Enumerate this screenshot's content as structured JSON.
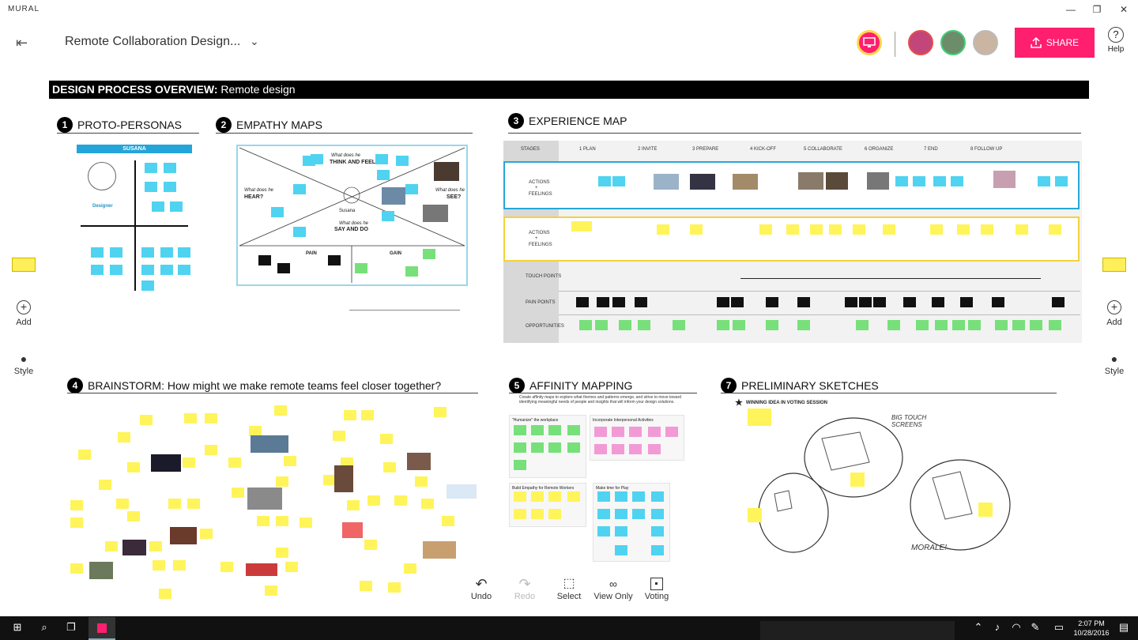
{
  "window": {
    "app_name": "MURAL",
    "minimize": "—",
    "maximize": "❐",
    "close": "✕"
  },
  "header": {
    "board_title": "Remote Collaboration Design...",
    "share_label": "SHARE",
    "help_label": "Help"
  },
  "side_tools": {
    "add_label": "Add",
    "style_label": "Style"
  },
  "canvas": {
    "title_bold": "DESIGN PROCESS OVERVIEW:",
    "title_rest": " Remote design",
    "sections": {
      "s1": {
        "num": "1",
        "title": "PROTO-PERSONAS",
        "persona_name": "SUSANA",
        "persona_role": "Designer"
      },
      "s2": {
        "num": "2",
        "title": "EMPATHY MAPS",
        "think": "THINK AND FEEL",
        "think_pre": "What does he",
        "hear": "HEAR?",
        "hear_pre": "What does he",
        "see": "SEE?",
        "see_pre": "What does he",
        "say": "SAY AND DO",
        "say_pre": "What does he",
        "center": "Susana",
        "pain": "PAIN",
        "gain": "GAIN"
      },
      "s3": {
        "num": "3",
        "title": "EXPERIENCE MAP",
        "stages_label": "STAGES",
        "stages": [
          "1  PLAN",
          "2  INVITE",
          "3  PREPARE",
          "4  KICK-OFF",
          "5  COLLABORATE",
          "6  ORGANIZE",
          "7  END",
          "8  FOLLOW UP"
        ],
        "rows": {
          "actions": "ACTIONS",
          "plus": "+",
          "feelings": "FEELINGS",
          "touchpoints": "TOUCH POINTS",
          "painpoints": "PAIN POINTS",
          "opportunities": "OPPORTUNITIES"
        }
      },
      "s4": {
        "num": "4",
        "title": "BRAINSTORM: How might we make remote teams feel closer together?"
      },
      "s5": {
        "num": "5",
        "title": "AFFINITY MAPPING",
        "desc": "Create affinity maps to explore what themes and patterns emerge, and strive to move toward identifying meaningful needs of people and insights that will inform your design solutions.",
        "groups": [
          "\"Humanize\" the workplace",
          "Incorporate Interpersonal Activities",
          "Build Empathy for Remote Workers",
          "Make time for Play"
        ]
      },
      "s7": {
        "num": "7",
        "title": "PRELIMINARY SKETCHES",
        "winning": "WINNING IDEA IN VOTING SESSION",
        "big_touch": "BIG TOUCH\nSCREENS",
        "morale": "MORALE!"
      }
    }
  },
  "bottom_toolbar": {
    "undo": "Undo",
    "redo": "Redo",
    "select": "Select",
    "view_only": "View Only",
    "voting": "Voting"
  },
  "taskbar": {
    "time": "2:07 PM",
    "date": "10/28/2016"
  },
  "colors": {
    "share": "#ff1f6e",
    "sticky_yellow": "#fff45a",
    "sticky_blue": "#4fd3f0",
    "sticky_green": "#77e07a",
    "sticky_pink": "#f29ad6"
  }
}
